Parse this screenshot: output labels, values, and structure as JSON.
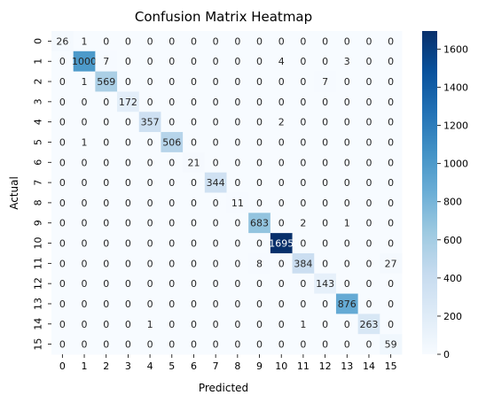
{
  "chart_data": {
    "type": "heatmap",
    "title": "Confusion Matrix Heatmap",
    "xlabel": "Predicted",
    "ylabel": "Actual",
    "x_tick_labels": [
      "0",
      "1",
      "2",
      "3",
      "4",
      "5",
      "6",
      "7",
      "8",
      "9",
      "10",
      "11",
      "12",
      "13",
      "14",
      "15"
    ],
    "y_tick_labels": [
      "0",
      "1",
      "2",
      "3",
      "4",
      "5",
      "6",
      "7",
      "8",
      "9",
      "10",
      "11",
      "12",
      "13",
      "14",
      "15"
    ],
    "values": [
      [
        26,
        1,
        0,
        0,
        0,
        0,
        0,
        0,
        0,
        0,
        0,
        0,
        0,
        0,
        0,
        0
      ],
      [
        0,
        1000,
        7,
        0,
        0,
        0,
        0,
        0,
        0,
        0,
        4,
        0,
        0,
        3,
        0,
        0
      ],
      [
        0,
        1,
        569,
        0,
        0,
        0,
        0,
        0,
        0,
        0,
        0,
        0,
        7,
        0,
        0,
        0
      ],
      [
        0,
        0,
        0,
        172,
        0,
        0,
        0,
        0,
        0,
        0,
        0,
        0,
        0,
        0,
        0,
        0
      ],
      [
        0,
        0,
        0,
        0,
        357,
        0,
        0,
        0,
        0,
        0,
        2,
        0,
        0,
        0,
        0,
        0
      ],
      [
        0,
        1,
        0,
        0,
        0,
        506,
        0,
        0,
        0,
        0,
        0,
        0,
        0,
        0,
        0,
        0
      ],
      [
        0,
        0,
        0,
        0,
        0,
        0,
        21,
        0,
        0,
        0,
        0,
        0,
        0,
        0,
        0,
        0
      ],
      [
        0,
        0,
        0,
        0,
        0,
        0,
        0,
        344,
        0,
        0,
        0,
        0,
        0,
        0,
        0,
        0
      ],
      [
        0,
        0,
        0,
        0,
        0,
        0,
        0,
        0,
        11,
        0,
        0,
        0,
        0,
        0,
        0,
        0
      ],
      [
        0,
        0,
        0,
        0,
        0,
        0,
        0,
        0,
        0,
        683,
        0,
        2,
        0,
        1,
        0,
        0
      ],
      [
        0,
        0,
        0,
        0,
        0,
        0,
        0,
        0,
        0,
        0,
        1695,
        0,
        0,
        0,
        0,
        0
      ],
      [
        0,
        0,
        0,
        0,
        0,
        0,
        0,
        0,
        0,
        8,
        0,
        384,
        0,
        0,
        0,
        27
      ],
      [
        0,
        0,
        0,
        0,
        0,
        0,
        0,
        0,
        0,
        0,
        0,
        0,
        143,
        0,
        0,
        0
      ],
      [
        0,
        0,
        0,
        0,
        0,
        0,
        0,
        0,
        0,
        0,
        0,
        0,
        0,
        876,
        0,
        0
      ],
      [
        0,
        0,
        0,
        0,
        1,
        0,
        0,
        0,
        0,
        0,
        0,
        1,
        0,
        0,
        263,
        0
      ],
      [
        0,
        0,
        0,
        0,
        0,
        0,
        0,
        0,
        0,
        0,
        0,
        0,
        0,
        0,
        0,
        59
      ]
    ],
    "colormap": "Blues",
    "colorbar": {
      "min": 0,
      "max": 1695,
      "ticks": [
        0,
        200,
        400,
        600,
        800,
        1000,
        1200,
        1400,
        1600
      ]
    },
    "annotations": "cell counts",
    "grid": false
  }
}
